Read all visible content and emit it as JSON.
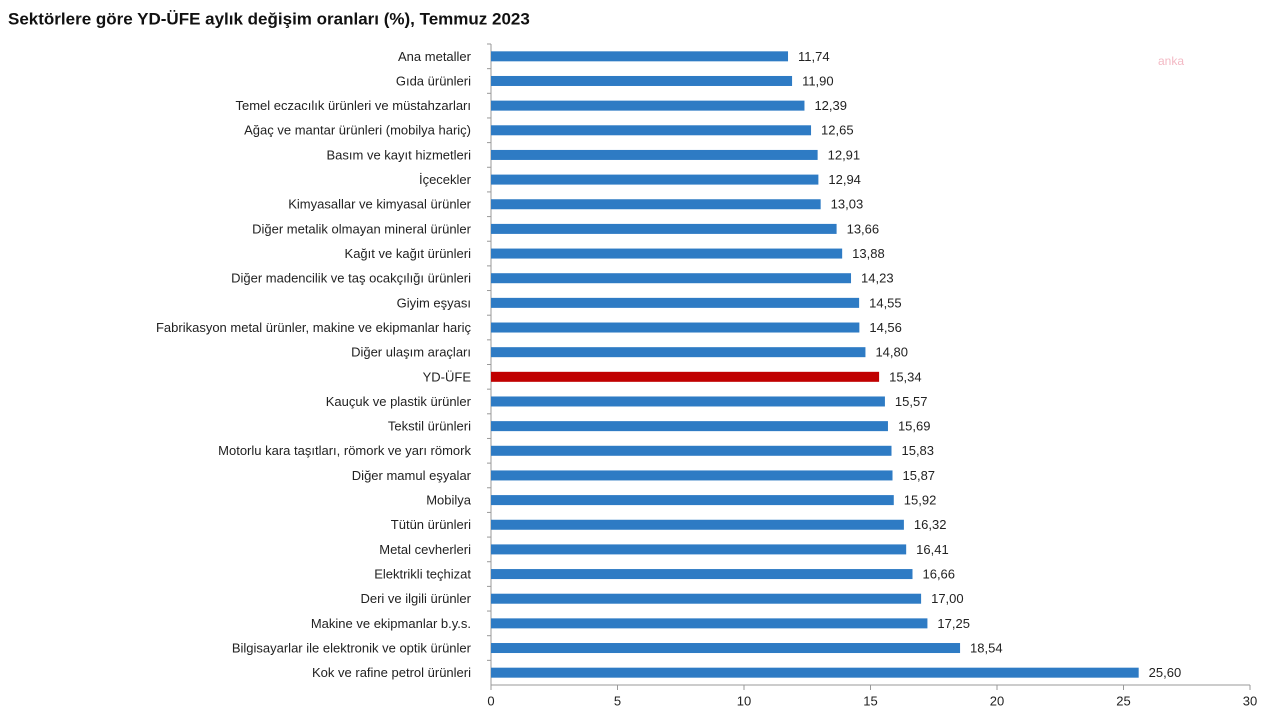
{
  "chart_data": {
    "type": "barh",
    "title": "Sektörlere göre YD-ÜFE aylık değişim oranları (%), Temmuz 2023",
    "watermark": "anka",
    "categories": [
      "Ana metaller",
      "Gıda ürünleri",
      "Temel eczacılık ürünleri ve müstahzarları",
      "Ağaç ve mantar ürünleri (mobilya hariç)",
      "Basım ve kayıt hizmetleri",
      "İçecekler",
      "Kimyasallar ve kimyasal ürünler",
      "Diğer metalik olmayan mineral ürünler",
      "Kağıt ve kağıt ürünleri",
      "Diğer madencilik ve taş ocakçılığı ürünleri",
      "Giyim eşyası",
      "Fabrikasyon metal ürünler, makine ve ekipmanlar hariç",
      "Diğer ulaşım araçları",
      "YD-ÜFE",
      "Kauçuk ve plastik ürünler",
      "Tekstil ürünleri",
      "Motorlu kara taşıtları, römork ve yarı römork",
      "Diğer mamul eşyalar",
      "Mobilya",
      "Tütün ürünleri",
      "Metal cevherleri",
      "Elektrikli teçhizat",
      "Deri ve ilgili ürünler",
      "Makine ve ekipmanlar b.y.s.",
      "Bilgisayarlar ile elektronik ve optik ürünler",
      "Kok ve rafine petrol ürünleri"
    ],
    "values": [
      11.74,
      11.9,
      12.39,
      12.65,
      12.91,
      12.94,
      13.03,
      13.66,
      13.88,
      14.23,
      14.55,
      14.56,
      14.8,
      15.34,
      15.57,
      15.69,
      15.83,
      15.87,
      15.92,
      16.32,
      16.41,
      16.66,
      17.0,
      17.25,
      18.54,
      25.6
    ],
    "value_labels": [
      "11,74",
      "11,90",
      "12,39",
      "12,65",
      "12,91",
      "12,94",
      "13,03",
      "13,66",
      "13,88",
      "14,23",
      "14,55",
      "14,56",
      "14,80",
      "15,34",
      "15,57",
      "15,69",
      "15,83",
      "15,87",
      "15,92",
      "16,32",
      "16,41",
      "16,66",
      "17,00",
      "17,25",
      "18,54",
      "25,60"
    ],
    "color": "#2e7bc4",
    "highlight": {
      "category": "YD-ÜFE",
      "color": "#c00000"
    },
    "xlim": [
      0,
      30
    ],
    "xticks": [
      0,
      5,
      10,
      15,
      20,
      25,
      30
    ]
  }
}
